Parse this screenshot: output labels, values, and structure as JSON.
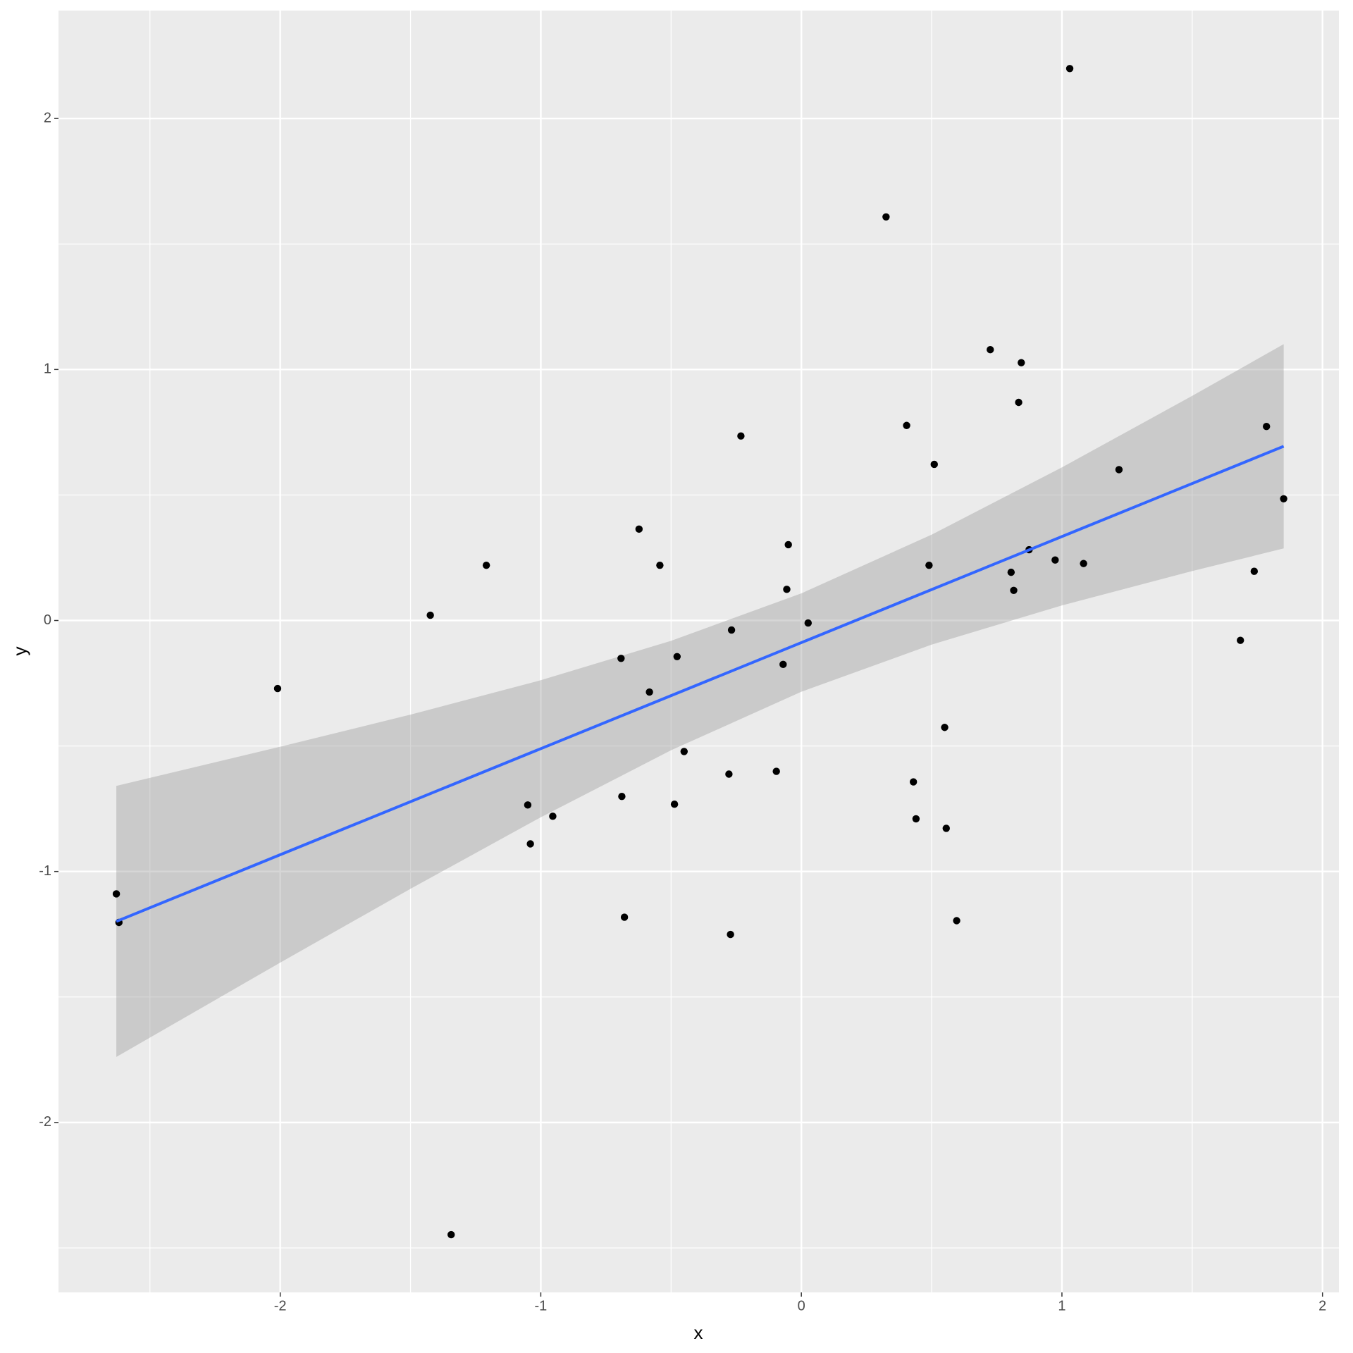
{
  "chart_data": {
    "type": "scatter",
    "x_label": "x",
    "y_label": "y",
    "x": [
      -2.629,
      -2.619,
      -2.01,
      -1.424,
      -1.344,
      -1.209,
      -1.05,
      -1.04,
      -0.954,
      -0.692,
      -0.689,
      -0.679,
      -0.623,
      -0.583,
      -0.543,
      -0.487,
      -0.477,
      -0.45,
      -0.278,
      -0.272,
      -0.268,
      -0.232,
      -0.096,
      -0.07,
      -0.056,
      -0.05,
      0.026,
      0.325,
      0.404,
      0.43,
      0.44,
      0.49,
      0.51,
      0.55,
      0.556,
      0.596,
      0.725,
      0.805,
      0.815,
      0.834,
      0.844,
      0.874,
      0.974,
      1.03,
      1.083,
      1.219,
      1.685,
      1.738,
      1.785,
      1.851
    ],
    "y": [
      -1.089,
      -1.203,
      -0.271,
      0.021,
      -2.447,
      0.22,
      -0.735,
      -0.89,
      -0.78,
      -0.151,
      -0.701,
      -1.182,
      0.364,
      -0.285,
      0.22,
      -0.732,
      -0.144,
      -0.522,
      -0.612,
      -1.251,
      -0.038,
      0.735,
      -0.601,
      -0.175,
      0.124,
      0.302,
      -0.01,
      1.608,
      0.777,
      -0.643,
      -0.79,
      0.22,
      0.622,
      -0.426,
      -0.828,
      -1.196,
      1.079,
      0.192,
      0.12,
      0.869,
      1.027,
      0.282,
      0.241,
      2.199,
      0.227,
      0.601,
      -0.079,
      0.196,
      0.773,
      0.485
    ],
    "point_color": "#000000",
    "fit": {
      "x": [
        -2.629,
        1.851
      ],
      "y": [
        -1.199,
        0.694
      ],
      "color": "#3366FF"
    },
    "band": {
      "x": [
        -2.629,
        -2,
        -1.5,
        -1,
        -0.5,
        0,
        0.5,
        1,
        1.5,
        1.851
      ],
      "upper": [
        -0.659,
        -0.503,
        -0.375,
        -0.238,
        -0.081,
        0.108,
        0.342,
        0.61,
        0.895,
        1.101
      ],
      "lower": [
        -1.739,
        -1.363,
        -1.069,
        -0.784,
        -0.517,
        -0.284,
        -0.096,
        0.06,
        0.197,
        0.287
      ],
      "color": "#999999"
    },
    "xlim": [
      -2.851,
      2.063
    ],
    "ylim": [
      -2.677,
      2.43
    ],
    "xticks": [
      -2,
      -1,
      0,
      1,
      2
    ],
    "yticks": [
      -2,
      -1,
      0,
      1,
      2
    ],
    "x_minor_breaks": [
      -2.5,
      -1.5,
      -0.5,
      0.5,
      1.5
    ],
    "y_minor_breaks": [
      -2.5,
      -1.5,
      -0.5,
      0.5,
      1.5
    ],
    "grid": true
  }
}
